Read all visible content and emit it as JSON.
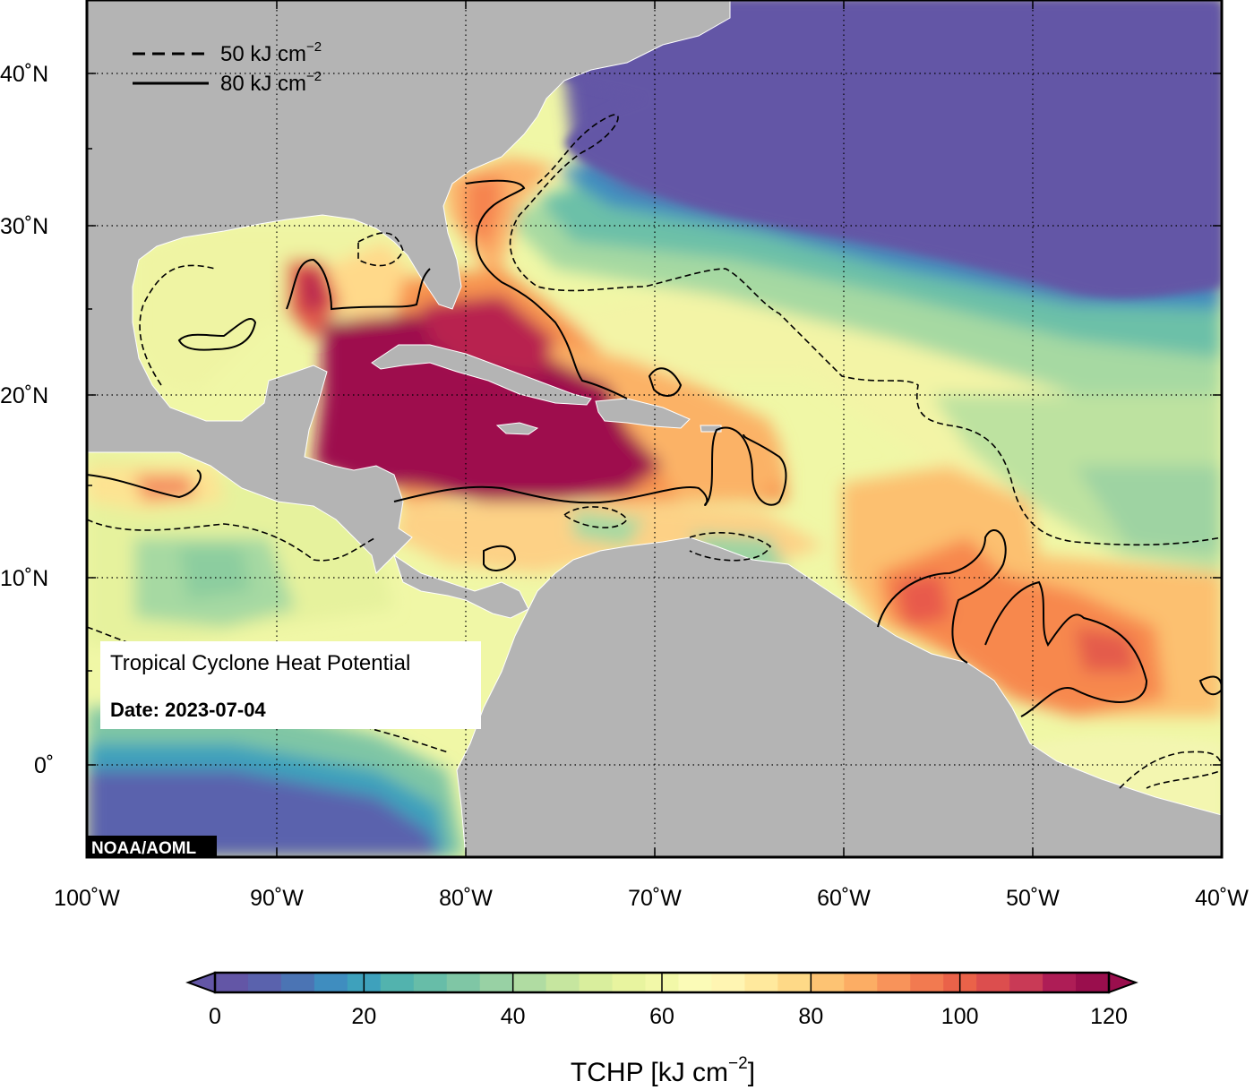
{
  "map": {
    "title": "Tropical Cyclone Heat Potential",
    "date_label": "Date: 2023-07-04",
    "credit": "NOAA/AOML",
    "legend": {
      "dashed_label": "50 kJ cm",
      "solid_label": "80 kJ cm",
      "exponent": "−2"
    },
    "lat_labels": [
      "40˚N",
      "30˚N",
      "20˚N",
      "10˚N",
      "0˚"
    ],
    "lon_labels": [
      "100˚W",
      "90˚W",
      "80˚W",
      "70˚W",
      "60˚W",
      "50˚W",
      "40˚W"
    ],
    "extent": {
      "lon": [
        -100,
        -40
      ],
      "lat": [
        -5,
        44
      ]
    }
  },
  "colorbar": {
    "title": "TCHP [kJ cm",
    "title_exp": "−2",
    "title_close": "]",
    "ticks": [
      "0",
      "20",
      "40",
      "60",
      "80",
      "100",
      "120"
    ],
    "range": [
      0,
      120
    ],
    "colors": [
      "#6356a6",
      "#5a62ad",
      "#4b74b4",
      "#3f8dbf",
      "#3ea1bc",
      "#52b3ae",
      "#67bda8",
      "#7fc6a5",
      "#98d1a4",
      "#b0dca2",
      "#c6e69f",
      "#d9ee9d",
      "#e8f49f",
      "#f2f8a8",
      "#fbfbb7",
      "#fff5b2",
      "#ffe99d",
      "#fed987",
      "#fdc373",
      "#fcad64",
      "#f8935a",
      "#f27a50",
      "#ea6249",
      "#dc4e4e",
      "#c93a56",
      "#ae1d56",
      "#9a0e4d"
    ]
  },
  "land_color": "#b4b4b4",
  "ocean_deep_color": "#6356a6"
}
